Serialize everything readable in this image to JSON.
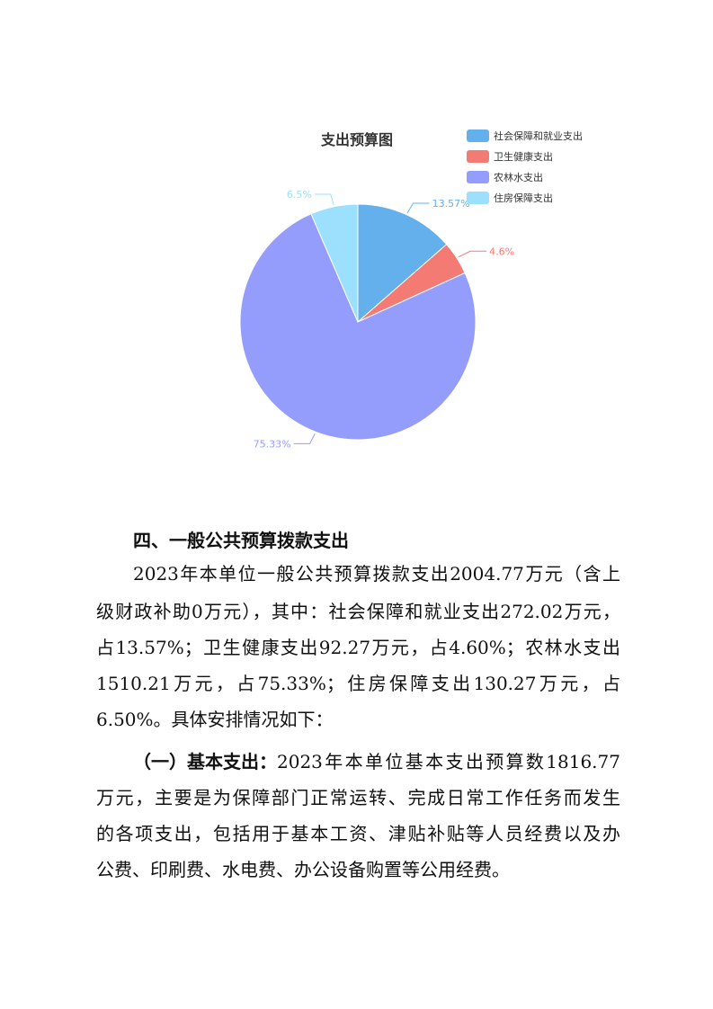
{
  "chart_data": {
    "type": "pie",
    "title": "支出预算图",
    "legend_position": "top-right",
    "slices": [
      {
        "name": "社会保障和就业支出",
        "value": 13.57,
        "label": "13.57%",
        "color": "#63b0ec"
      },
      {
        "name": "卫生健康支出",
        "value": 4.6,
        "label": "4.6%",
        "color": "#f47a74"
      },
      {
        "name": "农林水支出",
        "value": 75.33,
        "label": "75.33%",
        "color": "#959dfc"
      },
      {
        "name": "住房保障支出",
        "value": 6.5,
        "label": "6.5%",
        "color": "#9ce0fd"
      }
    ]
  },
  "section": {
    "heading": "四、一般公共预算拨款支出",
    "para1": [
      "2023年本单位一般公共预算拨款支出2004.77万元（含上",
      "级财政补助0万元），其中：社会保障和就业支出272.02万元，",
      "占13.57%；卫生健康支出92.27万元，占4.60%；农林水支出",
      "1510.21万元，占75.33%；住房保障支出130.27万元，占",
      "6.50%。具体安排情况如下："
    ],
    "para2_label": "（一）基本支出：",
    "para2": [
      "2023年本单位基本支出预算数1816.77",
      "万元，主要是为保障部门正常运转、完成日常工作任务而发生",
      "的各项支出，包括用于基本工资、津贴补贴等人员经费以及办",
      "公费、印刷费、水电费、办公设备购置等公用经费。"
    ]
  }
}
